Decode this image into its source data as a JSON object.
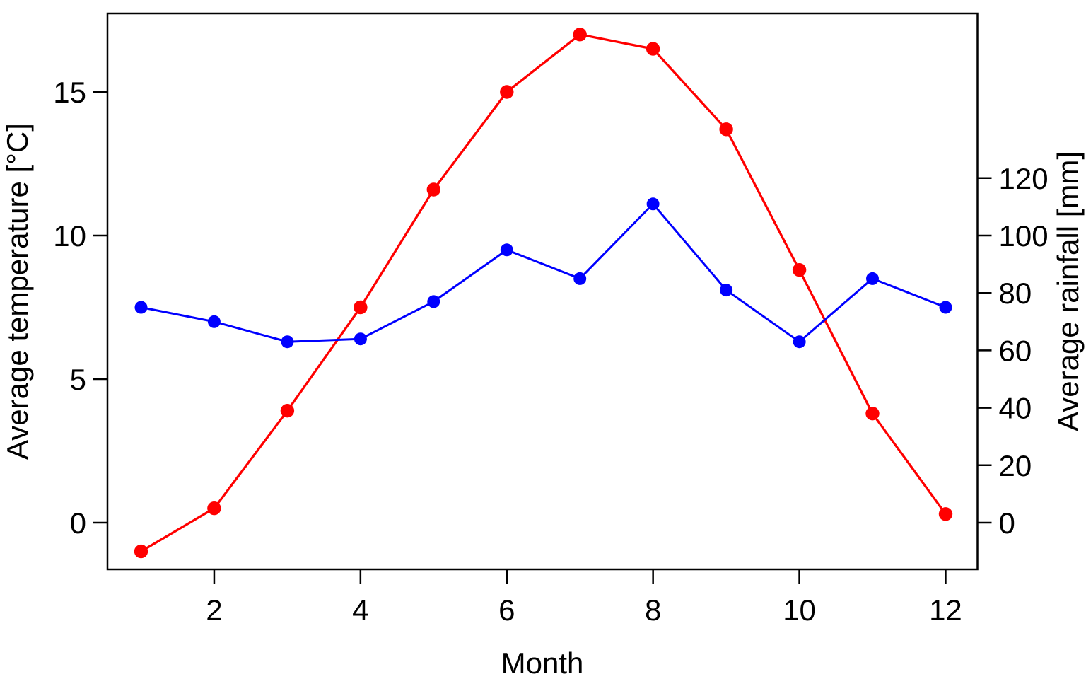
{
  "chart_data": {
    "type": "line",
    "title": "",
    "xlabel": "Month",
    "x": [
      1,
      2,
      3,
      4,
      5,
      6,
      7,
      8,
      9,
      10,
      11,
      12
    ],
    "x_ticks": [
      2,
      4,
      6,
      8,
      10,
      12
    ],
    "series": [
      {
        "name": "Average temperature",
        "axis": "left",
        "color": "#ff0000",
        "marker": "filled-circle",
        "values": [
          -1.0,
          0.5,
          3.9,
          7.5,
          11.6,
          15.0,
          17.0,
          16.5,
          13.7,
          8.8,
          3.8,
          0.3
        ]
      },
      {
        "name": "Average rainfall",
        "axis": "right",
        "color": "#0000ff",
        "marker": "filled-circle",
        "values": [
          75,
          70,
          63,
          64,
          77,
          95,
          85,
          111,
          81,
          63,
          85,
          75
        ]
      }
    ],
    "left_axis": {
      "label": "Average temperature [°C]",
      "ticks": [
        0,
        5,
        10,
        15
      ],
      "range": [
        -1.65,
        17.73
      ]
    },
    "right_axis": {
      "label": "Average rainfall [mm]",
      "ticks": [
        0,
        20,
        40,
        60,
        80,
        100,
        120
      ],
      "scale_vs_left": 10
    },
    "grid": false,
    "legend": "none",
    "background": "#ffffff",
    "box_color": "#000000"
  }
}
